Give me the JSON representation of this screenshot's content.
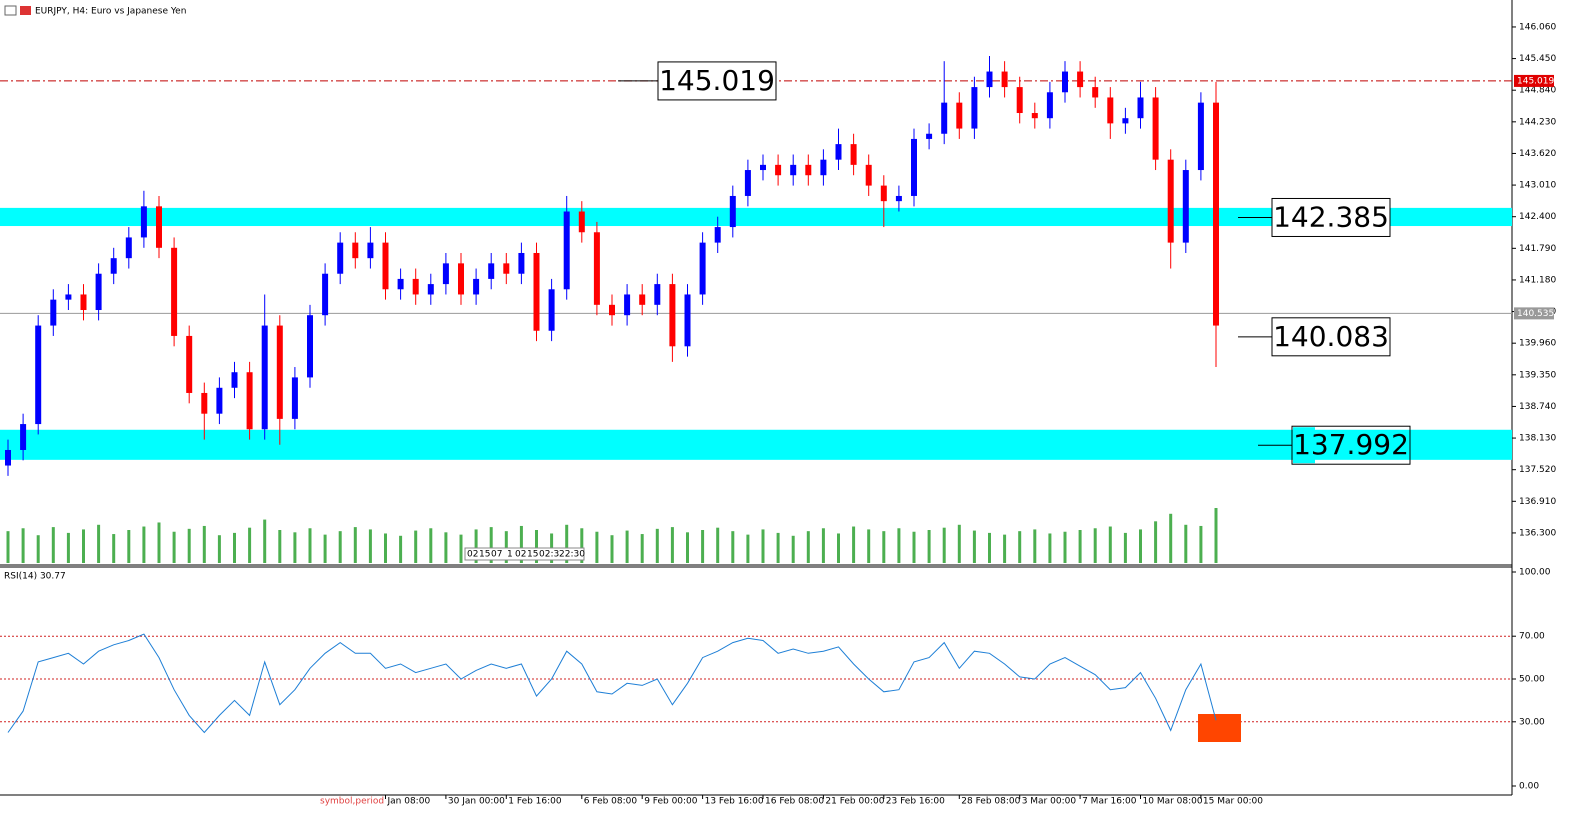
{
  "chart_data": [
    {
      "type": "candlestick",
      "title": "EURJPY, H4:  Euro vs Japanese Yen",
      "categories": [
        null,
        null,
        null,
        null,
        null,
        null,
        null,
        null,
        null,
        null,
        null,
        null,
        null,
        null,
        null,
        null,
        null,
        null,
        null,
        null,
        null,
        null,
        null,
        null,
        null,
        "Jan 08:00",
        null,
        null,
        null,
        "30 Jan 00:00",
        null,
        null,
        null,
        "1 Feb 16:00",
        null,
        null,
        null,
        null,
        "6 Feb 08:00",
        null,
        null,
        null,
        "9 Feb 00:00",
        null,
        null,
        null,
        "13 Feb 16:00",
        null,
        null,
        null,
        "16 Feb 08:00",
        null,
        null,
        null,
        "21 Feb 00:00",
        null,
        null,
        null,
        "23 Feb 16:00",
        null,
        null,
        null,
        null,
        "28 Feb 08:00",
        null,
        null,
        null,
        "3 Mar 00:00",
        null,
        null,
        null,
        "7 Mar 16:00",
        null,
        null,
        null,
        "10 Mar 08:00",
        null,
        null,
        null,
        "15 Mar 00:00",
        null
      ],
      "open": [
        137.6,
        137.9,
        138.4,
        140.3,
        140.8,
        140.9,
        140.6,
        141.3,
        141.6,
        142.0,
        142.6,
        141.8,
        140.1,
        139.0,
        138.6,
        139.1,
        139.4,
        138.3,
        140.3,
        138.5,
        139.3,
        140.5,
        141.3,
        141.9,
        141.6,
        141.9,
        141.0,
        141.2,
        140.9,
        141.1,
        141.5,
        140.9,
        141.2,
        141.5,
        141.3,
        141.7,
        140.2,
        141.0,
        142.5,
        142.1,
        140.7,
        140.5,
        140.9,
        140.7,
        141.1,
        139.9,
        140.9,
        141.9,
        142.2,
        142.8,
        143.3,
        143.4,
        143.2,
        143.4,
        143.2,
        143.5,
        143.8,
        143.4,
        143.0,
        142.7,
        142.8,
        143.9,
        144.0,
        144.6,
        144.1,
        144.9,
        145.2,
        144.9,
        144.4,
        144.3,
        144.8,
        145.2,
        144.9,
        144.7,
        144.2,
        144.3,
        144.7,
        143.5,
        141.9,
        143.3,
        144.6
      ],
      "high": [
        138.1,
        138.6,
        140.5,
        141.0,
        141.1,
        141.1,
        141.5,
        141.8,
        142.2,
        142.9,
        142.8,
        142.0,
        140.3,
        139.2,
        139.3,
        139.6,
        139.6,
        140.9,
        140.5,
        139.5,
        140.7,
        141.5,
        142.1,
        142.1,
        142.2,
        142.1,
        141.4,
        141.4,
        141.3,
        141.7,
        141.7,
        141.4,
        141.7,
        141.7,
        141.9,
        141.9,
        141.2,
        142.8,
        142.7,
        142.3,
        140.9,
        141.1,
        141.1,
        141.3,
        141.3,
        141.1,
        142.1,
        142.4,
        143.0,
        143.5,
        143.6,
        143.6,
        143.6,
        143.6,
        143.7,
        144.1,
        144.0,
        143.6,
        143.2,
        143.0,
        144.1,
        144.2,
        145.4,
        144.8,
        145.1,
        145.5,
        145.4,
        145.1,
        144.6,
        145.0,
        145.4,
        145.4,
        145.1,
        144.9,
        144.5,
        145.0,
        144.9,
        143.7,
        143.5,
        144.8,
        145.0
      ],
      "low": [
        137.4,
        137.7,
        138.2,
        140.1,
        140.6,
        140.4,
        140.4,
        141.1,
        141.4,
        141.8,
        141.6,
        139.9,
        138.8,
        138.1,
        138.4,
        138.9,
        138.1,
        138.1,
        138.0,
        138.3,
        139.1,
        140.3,
        141.1,
        141.4,
        141.4,
        140.8,
        140.8,
        140.7,
        140.7,
        140.9,
        140.7,
        140.7,
        141.0,
        141.1,
        141.1,
        140.0,
        140.0,
        140.8,
        141.9,
        140.5,
        140.3,
        140.3,
        140.5,
        140.5,
        139.6,
        139.7,
        140.7,
        141.7,
        142.0,
        142.6,
        143.1,
        143.0,
        143.0,
        143.0,
        143.0,
        143.3,
        143.2,
        142.8,
        142.2,
        142.5,
        142.6,
        143.7,
        143.8,
        143.9,
        143.9,
        144.7,
        144.7,
        144.2,
        144.1,
        144.1,
        144.6,
        144.7,
        144.5,
        143.9,
        144.0,
        144.1,
        143.3,
        141.4,
        141.7,
        143.1,
        139.5
      ],
      "close": [
        137.9,
        138.4,
        140.3,
        140.8,
        140.9,
        140.6,
        141.3,
        141.6,
        142.0,
        142.6,
        141.8,
        140.1,
        139.0,
        138.6,
        139.1,
        139.4,
        138.3,
        140.3,
        138.5,
        139.3,
        140.5,
        141.3,
        141.9,
        141.6,
        141.9,
        141.0,
        141.2,
        140.9,
        141.1,
        141.5,
        140.9,
        141.2,
        141.5,
        141.3,
        141.7,
        140.2,
        141.0,
        142.5,
        142.1,
        140.7,
        140.5,
        140.9,
        140.7,
        141.1,
        139.9,
        140.9,
        141.9,
        142.2,
        142.8,
        143.3,
        143.4,
        143.2,
        143.4,
        143.2,
        143.5,
        143.8,
        143.4,
        143.0,
        142.7,
        142.8,
        143.9,
        144.0,
        144.6,
        144.1,
        144.9,
        145.2,
        144.9,
        144.4,
        144.3,
        144.8,
        145.2,
        144.9,
        144.7,
        144.2,
        144.3,
        144.7,
        143.5,
        141.9,
        143.3,
        144.6,
        140.3
      ],
      "volume": [
        55,
        60,
        48,
        62,
        52,
        58,
        66,
        50,
        57,
        63,
        70,
        54,
        59,
        64,
        48,
        52,
        61,
        75,
        57,
        53,
        60,
        49,
        55,
        62,
        58,
        51,
        47,
        56,
        60,
        53,
        49,
        58,
        62,
        55,
        64,
        57,
        51,
        66,
        60,
        54,
        48,
        56,
        50,
        59,
        62,
        53,
        57,
        61,
        55,
        49,
        58,
        52,
        47,
        55,
        60,
        51,
        63,
        58,
        55,
        60,
        54,
        57,
        61,
        66,
        56,
        52,
        49,
        55,
        58,
        51,
        54,
        57,
        60,
        63,
        52,
        58,
        72,
        85,
        66,
        64,
        95
      ],
      "bull_color": "#0000ff",
      "bear_color": "#ff0000",
      "volume_color": "#4caf50",
      "ylim": [
        135.72,
        146.58
      ],
      "yticks": [
        {
          "value": 146.06,
          "label": "146.060"
        },
        {
          "value": 145.45,
          "label": "145.450"
        },
        {
          "value": 144.84,
          "label": "144.840"
        },
        {
          "value": 144.23,
          "label": "144.230"
        },
        {
          "value": 143.62,
          "label": "143.620"
        },
        {
          "value": 143.01,
          "label": "143.010"
        },
        {
          "value": 142.4,
          "label": "142.400"
        },
        {
          "value": 141.79,
          "label": "141.790"
        },
        {
          "value": 141.18,
          "label": "141.180"
        },
        {
          "value": 140.57,
          "label": "140.570"
        },
        {
          "value": 139.96,
          "label": "139.960"
        },
        {
          "value": 139.35,
          "label": "139.350"
        },
        {
          "value": 138.74,
          "label": "138.740"
        },
        {
          "value": 138.13,
          "label": "138.130"
        },
        {
          "value": 137.52,
          "label": "137.520"
        },
        {
          "value": 136.91,
          "label": "136.910"
        },
        {
          "value": 136.3,
          "label": "136.300"
        }
      ],
      "bands": [
        {
          "from": 142.22,
          "to": 142.57
        },
        {
          "from": 137.71,
          "to": 138.29
        }
      ],
      "band_color": "#00ffff",
      "level_line": 145.019,
      "current_price": 140.535,
      "annotations": [
        145.019,
        142.385,
        140.083,
        137.992
      ],
      "scroll_labels": [
        "02",
        "15",
        "07",
        "1",
        "02",
        "15",
        "02:3",
        "22:30"
      ],
      "footer_label": "symbol,period"
    },
    {
      "type": "line",
      "title": "RSI(14) 30.77",
      "color": "#1e7fd6",
      "values": [
        25,
        35,
        58,
        60,
        62,
        57,
        63,
        66,
        68,
        71,
        60,
        45,
        33,
        25,
        33,
        40,
        33,
        58,
        38,
        45,
        55,
        62,
        67,
        62,
        62,
        55,
        57,
        53,
        55,
        57,
        50,
        54,
        57,
        55,
        57,
        42,
        50,
        63,
        57,
        44,
        43,
        48,
        47,
        50,
        38,
        48,
        60,
        63,
        67,
        69,
        68,
        62,
        64,
        62,
        63,
        65,
        57,
        50,
        44,
        45,
        58,
        60,
        67,
        55,
        63,
        62,
        57,
        51,
        50,
        57,
        60,
        56,
        52,
        45,
        46,
        53,
        41,
        26,
        45,
        57,
        30.77
      ],
      "ylim": [
        0,
        100
      ],
      "yticks": [
        {
          "value": 100,
          "label": "100.00"
        },
        {
          "value": 70,
          "label": "70.00"
        },
        {
          "value": 50,
          "label": "50.00"
        },
        {
          "value": 30,
          "label": "30.00"
        },
        {
          "value": 0,
          "label": "0.00"
        }
      ]
    }
  ]
}
